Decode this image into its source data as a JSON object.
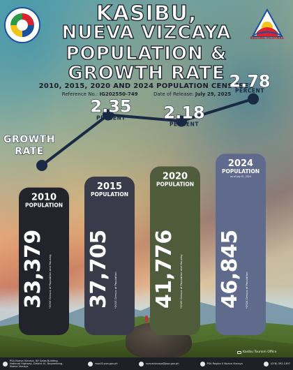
{
  "title": {
    "line1": "KASIBU,",
    "line2": "NUEVA VIZCAYA",
    "line3": "POPULATION &",
    "line4": "GROWTH RATE"
  },
  "subtitle": "2010, 2015, 2020 AND 2024 POPULATION CENSUSES",
  "reference": {
    "label": "Reference No.:",
    "value": "IG202550-749"
  },
  "release": {
    "label": "Date of Release:",
    "value": "July 29, 2025"
  },
  "logos": {
    "right_label": "BAGONG PILIPINAS"
  },
  "photo_credit": "Kasibu Tourism Office",
  "chart_data": {
    "type": "bar",
    "categories": [
      "2010",
      "2015",
      "2020",
      "2024"
    ],
    "series": [
      {
        "name": "POPULATION",
        "values": [
          33379,
          37705,
          41776,
          46845
        ]
      }
    ],
    "value_labels": [
      "33,379",
      "37,705",
      "41,776",
      "46,845"
    ],
    "bar_word": "POPULATION",
    "bar_note": "as of July 01, 2024",
    "sources": [
      "*2010 Census of Population and Housing",
      "*2015 Census of Population",
      "*2020 Census of Population and Housing",
      "*2024 Census of Population"
    ],
    "bar_colors": [
      "#23242b",
      "#3a3b4a",
      "#4f5c3c",
      "#5f6a8c"
    ],
    "growth_rate": {
      "label_line1": "GROWTH",
      "label_line2": "RATE",
      "unit": "PERCENT",
      "values": [
        2.35,
        2.18,
        2.78
      ],
      "value_labels": [
        "2.35",
        "2.18",
        "2.78"
      ],
      "line_color": "#1b2a44"
    }
  },
  "footer": {
    "address": "PSA Nueva Vizcaya, 8/f Galas Building, National Highway, District IV, Bayombong, Nueva Vizcaya",
    "website": "rsso02.psa.gov.ph",
    "email": "nuevavizcaya@psa.gov.ph",
    "facebook": "PSA Region II Nueva Vizcaya",
    "phone": "(078) 392-1397"
  }
}
